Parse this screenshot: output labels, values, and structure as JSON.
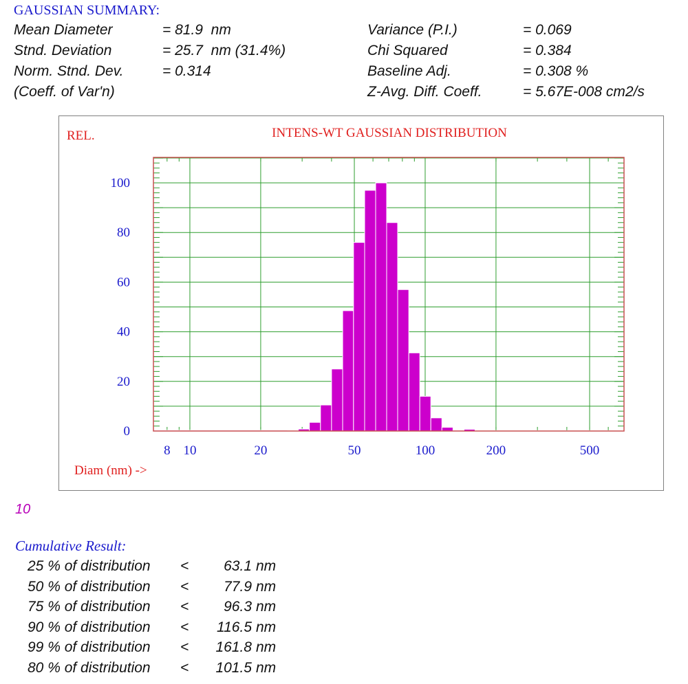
{
  "summary": {
    "heading": "GAUSSIAN SUMMARY:",
    "left": [
      {
        "label": "Mean Diameter",
        "value": "= 81.9  nm"
      },
      {
        "label": "Stnd. Deviation",
        "value": "= 25.7  nm (31.4%)"
      },
      {
        "label": "Norm. Stnd. Dev.",
        "value": "= 0.314"
      },
      {
        "label": "(Coeff. of Var'n)",
        "value": ""
      }
    ],
    "right": [
      {
        "label": "Variance (P.I.)",
        "value": "= 0.069"
      },
      {
        "label": "Chi Squared",
        "value": "= 0.384"
      },
      {
        "label": "Baseline Adj.",
        "value": "= 0.308 %"
      },
      {
        "label": "Z-Avg. Diff. Coeff.",
        "value": "= 5.67E-008 cm2/s"
      }
    ]
  },
  "chart_data": {
    "type": "bar",
    "title": "INTENS-WT GAUSSIAN DISTRIBUTION",
    "ylabel": "REL.",
    "xlabel": "Diam (nm) ->",
    "x_scale": "log",
    "xlim": [
      7,
      700
    ],
    "ylim": [
      0,
      110
    ],
    "x_ticks": [
      "8",
      "10",
      "20",
      "50",
      "100",
      "200",
      "500"
    ],
    "y_ticks": [
      "0",
      "20",
      "40",
      "60",
      "80",
      "100"
    ],
    "grid": true,
    "colors": {
      "bar": "#cc00cc",
      "title": "#e0201f",
      "axis_text": "#1a1acc",
      "grid": "#2e9e2e",
      "frame": "#c85050"
    },
    "bins": [
      {
        "low": 7,
        "high": 26.0,
        "value": 0.3
      },
      {
        "low": 26.0,
        "high": 28.9,
        "value": 0
      },
      {
        "low": 28.9,
        "high": 32.2,
        "value": 0.8
      },
      {
        "low": 32.2,
        "high": 35.9,
        "value": 3.5
      },
      {
        "low": 35.9,
        "high": 40.0,
        "value": 10.5
      },
      {
        "low": 40.0,
        "high": 44.6,
        "value": 25
      },
      {
        "low": 44.6,
        "high": 49.6,
        "value": 48.5
      },
      {
        "low": 49.6,
        "high": 55.3,
        "value": 76
      },
      {
        "low": 55.3,
        "high": 61.6,
        "value": 97
      },
      {
        "low": 61.6,
        "high": 68.6,
        "value": 100
      },
      {
        "low": 68.6,
        "high": 76.4,
        "value": 84
      },
      {
        "low": 76.4,
        "high": 85.2,
        "value": 57
      },
      {
        "low": 85.2,
        "high": 94.9,
        "value": 31.5
      },
      {
        "low": 94.9,
        "high": 105.7,
        "value": 14
      },
      {
        "low": 105.7,
        "high": 117.8,
        "value": 5.3
      },
      {
        "low": 117.8,
        "high": 131.3,
        "value": 1.5
      },
      {
        "low": 131.3,
        "high": 146.2,
        "value": 0.3
      },
      {
        "low": 146.2,
        "high": 162.9,
        "value": 0.7
      },
      {
        "low": 162.9,
        "high": 700,
        "value": 0.2
      }
    ]
  },
  "run_label": "10",
  "cumulative": {
    "title": "Cumulative Result:",
    "rows": [
      {
        "pct": "25 % of distribution",
        "lt": "<",
        "value": "63.1",
        "unit": "nm"
      },
      {
        "pct": "50 % of distribution",
        "lt": "<",
        "value": "77.9",
        "unit": "nm"
      },
      {
        "pct": "75 % of distribution",
        "lt": "<",
        "value": "96.3",
        "unit": "nm"
      },
      {
        "pct": "90 % of distribution",
        "lt": "<",
        "value": "116.5",
        "unit": "nm"
      },
      {
        "pct": "99 % of distribution",
        "lt": "<",
        "value": "161.8",
        "unit": "nm"
      },
      {
        "pct": "80 % of distribution",
        "lt": "<",
        "value": "101.5",
        "unit": "nm"
      }
    ]
  }
}
